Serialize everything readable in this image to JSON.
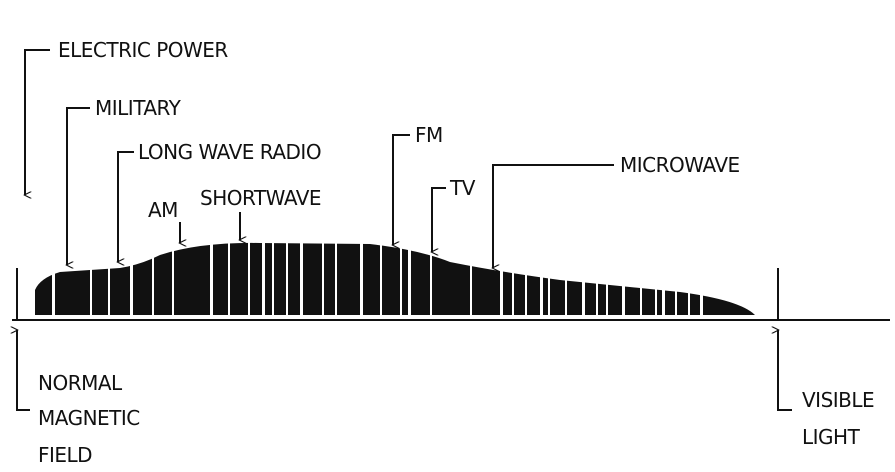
{
  "labels": {
    "electric_power": "ELECTRIC POWER",
    "military": "MILITARY",
    "long_wave_radio": "LONG WAVE RADIO",
    "am": "AM",
    "shortwave": "SHORTWAVE",
    "fm": "FM",
    "tv": "TV",
    "microwave": "MICROWAVE"
  },
  "bottom_labels": {
    "normal_magnetic_field": [
      "NORMAL",
      "MAGNETIC",
      "FIELD"
    ],
    "visible_light": [
      "VISIBLE",
      "LIGHT"
    ]
  }
}
